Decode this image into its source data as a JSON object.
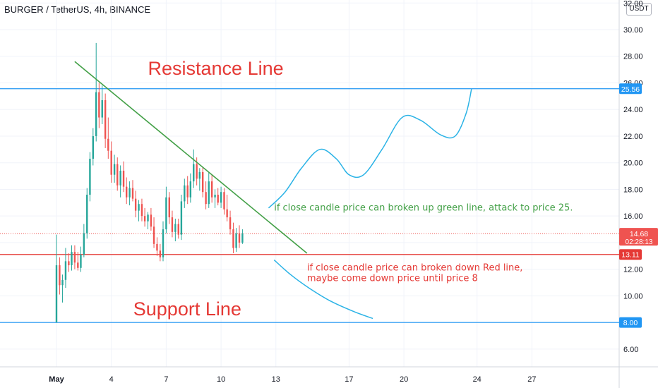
{
  "header": {
    "title": "BURGER / TetherUS, 4h, BINANCE",
    "currency": "USDT"
  },
  "chart_data": {
    "type": "candlestick",
    "y_axis_ticks": [
      "32.00",
      "30.00",
      "28.00",
      "26.00",
      "24.00",
      "22.00",
      "20.00",
      "18.00",
      "16.00",
      "14.00",
      "12.00",
      "10.00",
      "8.00",
      "6.00"
    ],
    "x_axis_ticks": [
      {
        "label": "May",
        "day": 1
      },
      {
        "label": "4",
        "day": 4
      },
      {
        "label": "7",
        "day": 7
      },
      {
        "label": "10",
        "day": 10
      },
      {
        "label": "13",
        "day": 13
      },
      {
        "label": "17",
        "day": 17
      },
      {
        "label": "20",
        "day": 20
      },
      {
        "label": "24",
        "day": 24
      },
      {
        "label": "27",
        "day": 27
      }
    ],
    "ylim": [
      5.0,
      32.5
    ],
    "xlim": [
      -2.0,
      30.0
    ],
    "grid": true,
    "colors": {
      "up": "#26a69a",
      "down": "#ef5350",
      "price_line": "#ef5350"
    },
    "candles": [
      {
        "day": 1.0,
        "o": 8.0,
        "h": 14.6,
        "l": 8.0,
        "c": 12.3
      },
      {
        "day": 1.17,
        "o": 12.3,
        "h": 12.9,
        "l": 10.1,
        "c": 10.8
      },
      {
        "day": 1.33,
        "o": 10.8,
        "h": 11.6,
        "l": 9.5,
        "c": 11.2
      },
      {
        "day": 1.5,
        "o": 11.2,
        "h": 13.6,
        "l": 10.6,
        "c": 12.6
      },
      {
        "day": 1.67,
        "o": 12.6,
        "h": 13.2,
        "l": 11.8,
        "c": 12.3
      },
      {
        "day": 1.83,
        "o": 12.3,
        "h": 13.8,
        "l": 11.9,
        "c": 13.3
      },
      {
        "day": 2.0,
        "o": 13.3,
        "h": 13.8,
        "l": 12.0,
        "c": 12.5
      },
      {
        "day": 2.17,
        "o": 12.5,
        "h": 13.3,
        "l": 11.9,
        "c": 12.1
      },
      {
        "day": 2.33,
        "o": 12.1,
        "h": 13.7,
        "l": 11.8,
        "c": 13.1
      },
      {
        "day": 2.5,
        "o": 13.1,
        "h": 15.4,
        "l": 12.9,
        "c": 14.7
      },
      {
        "day": 2.67,
        "o": 14.7,
        "h": 18.1,
        "l": 14.3,
        "c": 17.6
      },
      {
        "day": 2.83,
        "o": 17.6,
        "h": 20.8,
        "l": 17.1,
        "c": 20.3
      },
      {
        "day": 3.0,
        "o": 20.3,
        "h": 22.6,
        "l": 19.8,
        "c": 22.0
      },
      {
        "day": 3.17,
        "o": 22.0,
        "h": 29.0,
        "l": 21.6,
        "c": 25.3
      },
      {
        "day": 3.33,
        "o": 25.3,
        "h": 26.0,
        "l": 22.6,
        "c": 23.4
      },
      {
        "day": 3.5,
        "o": 23.4,
        "h": 25.8,
        "l": 22.9,
        "c": 24.7
      },
      {
        "day": 3.67,
        "o": 24.7,
        "h": 25.2,
        "l": 21.1,
        "c": 21.8
      },
      {
        "day": 3.83,
        "o": 21.8,
        "h": 23.4,
        "l": 20.3,
        "c": 20.9
      },
      {
        "day": 4.0,
        "o": 20.9,
        "h": 21.6,
        "l": 18.5,
        "c": 19.1
      },
      {
        "day": 4.17,
        "o": 19.1,
        "h": 20.6,
        "l": 18.5,
        "c": 19.9
      },
      {
        "day": 4.33,
        "o": 19.9,
        "h": 20.4,
        "l": 17.9,
        "c": 18.3
      },
      {
        "day": 4.5,
        "o": 18.3,
        "h": 19.8,
        "l": 17.4,
        "c": 19.4
      },
      {
        "day": 4.67,
        "o": 19.4,
        "h": 20.1,
        "l": 17.8,
        "c": 18.2
      },
      {
        "day": 4.83,
        "o": 18.2,
        "h": 18.9,
        "l": 16.9,
        "c": 17.4
      },
      {
        "day": 5.0,
        "o": 17.4,
        "h": 18.6,
        "l": 16.8,
        "c": 18.1
      },
      {
        "day": 5.17,
        "o": 18.1,
        "h": 18.7,
        "l": 17.1,
        "c": 17.3
      },
      {
        "day": 5.33,
        "o": 17.3,
        "h": 17.9,
        "l": 15.9,
        "c": 16.4
      },
      {
        "day": 5.5,
        "o": 16.4,
        "h": 17.2,
        "l": 15.6,
        "c": 16.9
      },
      {
        "day": 5.67,
        "o": 16.9,
        "h": 17.3,
        "l": 15.6,
        "c": 16.0
      },
      {
        "day": 5.83,
        "o": 16.0,
        "h": 16.6,
        "l": 15.2,
        "c": 15.6
      },
      {
        "day": 6.0,
        "o": 15.6,
        "h": 16.3,
        "l": 15.0,
        "c": 16.1
      },
      {
        "day": 6.17,
        "o": 16.1,
        "h": 16.6,
        "l": 14.9,
        "c": 15.2
      },
      {
        "day": 6.33,
        "o": 15.2,
        "h": 15.9,
        "l": 13.6,
        "c": 13.9
      },
      {
        "day": 6.5,
        "o": 13.9,
        "h": 14.4,
        "l": 13.0,
        "c": 13.4
      },
      {
        "day": 6.67,
        "o": 13.4,
        "h": 13.9,
        "l": 12.6,
        "c": 12.9
      },
      {
        "day": 6.83,
        "o": 12.9,
        "h": 15.6,
        "l": 12.6,
        "c": 15.0
      },
      {
        "day": 7.0,
        "o": 15.0,
        "h": 18.2,
        "l": 14.7,
        "c": 17.4
      },
      {
        "day": 7.17,
        "o": 17.4,
        "h": 17.8,
        "l": 15.4,
        "c": 15.9
      },
      {
        "day": 7.33,
        "o": 15.9,
        "h": 16.4,
        "l": 14.4,
        "c": 14.8
      },
      {
        "day": 7.5,
        "o": 14.8,
        "h": 15.8,
        "l": 14.1,
        "c": 15.4
      },
      {
        "day": 7.67,
        "o": 15.4,
        "h": 15.8,
        "l": 14.3,
        "c": 14.6
      },
      {
        "day": 7.83,
        "o": 14.6,
        "h": 17.6,
        "l": 14.2,
        "c": 17.1
      },
      {
        "day": 8.0,
        "o": 17.1,
        "h": 18.8,
        "l": 16.6,
        "c": 18.3
      },
      {
        "day": 8.17,
        "o": 18.3,
        "h": 19.0,
        "l": 16.9,
        "c": 17.4
      },
      {
        "day": 8.33,
        "o": 17.4,
        "h": 19.2,
        "l": 17.0,
        "c": 18.6
      },
      {
        "day": 8.5,
        "o": 18.6,
        "h": 21.0,
        "l": 18.1,
        "c": 19.9
      },
      {
        "day": 8.67,
        "o": 19.9,
        "h": 20.4,
        "l": 18.3,
        "c": 18.8
      },
      {
        "day": 8.83,
        "o": 18.8,
        "h": 19.6,
        "l": 17.9,
        "c": 19.3
      },
      {
        "day": 9.0,
        "o": 19.3,
        "h": 19.7,
        "l": 17.4,
        "c": 17.8
      },
      {
        "day": 9.17,
        "o": 17.8,
        "h": 18.6,
        "l": 16.5,
        "c": 16.9
      },
      {
        "day": 9.33,
        "o": 16.9,
        "h": 19.3,
        "l": 16.6,
        "c": 18.6
      },
      {
        "day": 9.5,
        "o": 18.6,
        "h": 19.1,
        "l": 17.0,
        "c": 17.4
      },
      {
        "day": 9.67,
        "o": 17.4,
        "h": 18.0,
        "l": 16.6,
        "c": 17.6
      },
      {
        "day": 9.83,
        "o": 17.6,
        "h": 18.1,
        "l": 16.8,
        "c": 17.0
      },
      {
        "day": 10.0,
        "o": 17.0,
        "h": 18.2,
        "l": 16.6,
        "c": 17.8
      },
      {
        "day": 10.17,
        "o": 17.8,
        "h": 18.1,
        "l": 16.1,
        "c": 16.5
      },
      {
        "day": 10.33,
        "o": 16.5,
        "h": 17.6,
        "l": 15.6,
        "c": 15.9
      },
      {
        "day": 10.5,
        "o": 15.9,
        "h": 16.4,
        "l": 14.6,
        "c": 15.0
      },
      {
        "day": 10.67,
        "o": 15.0,
        "h": 15.5,
        "l": 13.2,
        "c": 13.6
      },
      {
        "day": 10.83,
        "o": 13.6,
        "h": 15.1,
        "l": 13.3,
        "c": 14.7
      },
      {
        "day": 11.0,
        "o": 14.7,
        "h": 15.3,
        "l": 13.6,
        "c": 14.0
      },
      {
        "day": 11.17,
        "o": 14.0,
        "h": 15.0,
        "l": 13.9,
        "c": 14.68
      }
    ],
    "current_price": {
      "value": 14.68,
      "label": "14.68",
      "countdown": "02:28:13"
    },
    "levels": [
      {
        "name": "resistance",
        "value": 25.56,
        "label": "25.56",
        "color": "#2196f3",
        "text": "Resistance Line",
        "text_day": 6.0,
        "text_price": 26.6
      },
      {
        "name": "red-line",
        "value": 13.11,
        "label": "13.11",
        "color": "#e53935"
      },
      {
        "name": "support",
        "value": 8.0,
        "label": "8.00",
        "color": "#2196f3",
        "text": "Support Line",
        "text_day": 5.2,
        "text_price": 8.55
      }
    ],
    "trendline": {
      "color": "#43a047",
      "from": {
        "day": 2.0,
        "price": 27.6
      },
      "to": {
        "day": 14.7,
        "price": 13.2
      }
    },
    "projections": [
      {
        "name": "up-projection",
        "color": "#2bb3e6",
        "points": [
          [
            12.6,
            16.6
          ],
          [
            13.5,
            17.8
          ],
          [
            14.4,
            19.6
          ],
          [
            15.4,
            21.0
          ],
          [
            16.3,
            20.3
          ],
          [
            17.0,
            19.1
          ],
          [
            17.8,
            19.1
          ],
          [
            18.8,
            21.0
          ],
          [
            19.9,
            23.4
          ],
          [
            20.9,
            23.2
          ],
          [
            22.0,
            22.1
          ],
          [
            22.8,
            22.0
          ],
          [
            23.4,
            23.7
          ],
          [
            23.7,
            25.56
          ]
        ]
      },
      {
        "name": "down-projection",
        "color": "#2bb3e6",
        "points": [
          [
            12.9,
            12.7
          ],
          [
            13.8,
            11.6
          ],
          [
            14.8,
            10.6
          ],
          [
            16.0,
            9.6
          ],
          [
            17.3,
            8.8
          ],
          [
            18.3,
            8.3
          ]
        ]
      }
    ],
    "annotations": [
      {
        "name": "annotation-green",
        "text": "if close candle price can broken up green line, attack to price 25.",
        "color": "#43a047",
        "day": 12.9,
        "price": 16.4
      },
      {
        "name": "annotation-red-1",
        "text": "if close candle price can broken down Red line,",
        "color": "#e53935",
        "day": 14.7,
        "price": 11.9
      },
      {
        "name": "annotation-red-2",
        "text": "maybe come down price until price 8",
        "color": "#e53935",
        "day": 14.7,
        "price": 11.1
      }
    ]
  }
}
